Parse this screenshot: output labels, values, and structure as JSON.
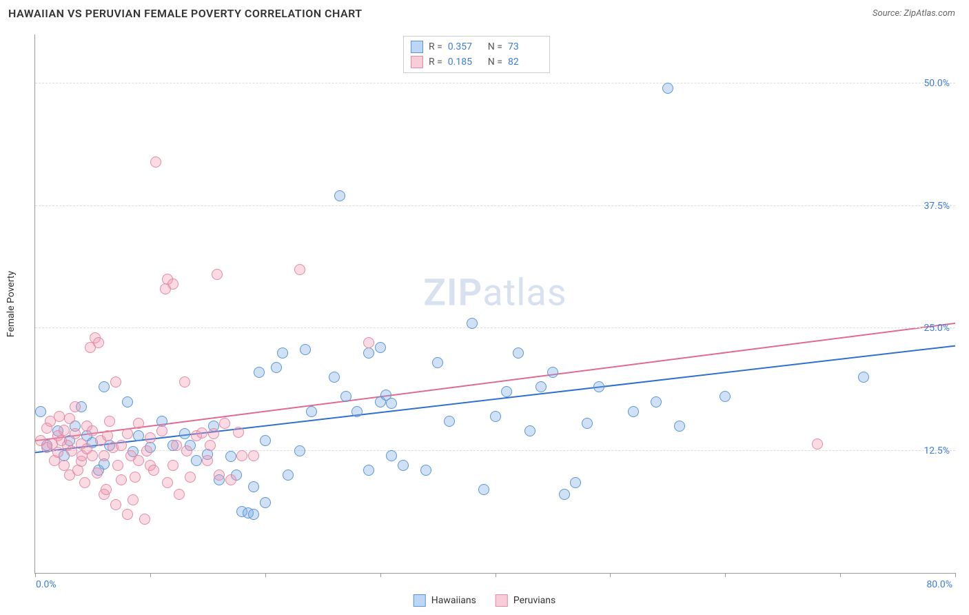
{
  "header": {
    "title": "HAWAIIAN VS PERUVIAN FEMALE POVERTY CORRELATION CHART",
    "source": "Source: ZipAtlas.com"
  },
  "chart": {
    "type": "scatter",
    "y_label": "Female Poverty",
    "xlim": [
      0,
      80
    ],
    "ylim": [
      0,
      55
    ],
    "x_ticks": [
      0,
      10,
      20,
      30,
      40,
      50,
      60,
      70,
      80
    ],
    "x_tick_labels": {
      "min": "0.0%",
      "max": "80.0%"
    },
    "y_gridlines": [
      12.5,
      25.0,
      37.5,
      50.0
    ],
    "y_tick_labels": [
      "12.5%",
      "25.0%",
      "37.5%",
      "50.0%"
    ],
    "background_color": "#ffffff",
    "grid_color": "#dddddd",
    "axis_color": "#999999",
    "tick_label_color": "#3b7dd8",
    "marker_radius": 8,
    "marker_border_width": 1.2,
    "watermark": "ZIPatlas",
    "series": [
      {
        "name": "Hawaiians",
        "fill": "rgba(120,170,230,0.35)",
        "stroke": "#5a96d6",
        "swatch_fill": "#bcd6f5",
        "swatch_border": "#5a96d6",
        "R": "0.357",
        "N": "73",
        "trend": {
          "x1": 0,
          "y1": 12.3,
          "x2": 80,
          "y2": 23.2,
          "color": "#2f6fd0",
          "width": 2
        },
        "points": [
          [
            0.5,
            16.5
          ],
          [
            1,
            13
          ],
          [
            2,
            14.5
          ],
          [
            2.5,
            12
          ],
          [
            3,
            13.5
          ],
          [
            3.5,
            15
          ],
          [
            4,
            17
          ],
          [
            4.5,
            14
          ],
          [
            5,
            13.3
          ],
          [
            5.5,
            10.5
          ],
          [
            6,
            11.1
          ],
          [
            6,
            19
          ],
          [
            6.5,
            13
          ],
          [
            8,
            17.5
          ],
          [
            8.5,
            12.4
          ],
          [
            9,
            14
          ],
          [
            10,
            12.8
          ],
          [
            11,
            15.5
          ],
          [
            12,
            13.0
          ],
          [
            13,
            14.2
          ],
          [
            13.5,
            13.0
          ],
          [
            14,
            11.5
          ],
          [
            15,
            12.1
          ],
          [
            15.5,
            15.0
          ],
          [
            16,
            9.5
          ],
          [
            17,
            11.9
          ],
          [
            17.5,
            10.0
          ],
          [
            18,
            6.3
          ],
          [
            18.5,
            6.1
          ],
          [
            19,
            6.0
          ],
          [
            19,
            8.8
          ],
          [
            19.5,
            20.5
          ],
          [
            20,
            7.2
          ],
          [
            20,
            13.5
          ],
          [
            21,
            21.0
          ],
          [
            21.5,
            22.5
          ],
          [
            22,
            10.0
          ],
          [
            23,
            12.5
          ],
          [
            23.5,
            22.8
          ],
          [
            24,
            16.5
          ],
          [
            26,
            20
          ],
          [
            26.5,
            38.5
          ],
          [
            27,
            18
          ],
          [
            28,
            16.5
          ],
          [
            29,
            22.5
          ],
          [
            29,
            10.5
          ],
          [
            30,
            17.5
          ],
          [
            30,
            23
          ],
          [
            30.5,
            18.2
          ],
          [
            31,
            12.0
          ],
          [
            31,
            17.3
          ],
          [
            32,
            11.0
          ],
          [
            34,
            10.5
          ],
          [
            35,
            21.5
          ],
          [
            36,
            15.5
          ],
          [
            38,
            25.5
          ],
          [
            39,
            8.5
          ],
          [
            40,
            16.0
          ],
          [
            41,
            18.5
          ],
          [
            42,
            22.5
          ],
          [
            43,
            14.5
          ],
          [
            44,
            19.0
          ],
          [
            45,
            20.5
          ],
          [
            46,
            8.0
          ],
          [
            47,
            9.2
          ],
          [
            48,
            15.3
          ],
          [
            49,
            19.0
          ],
          [
            52,
            16.5
          ],
          [
            54,
            17.5
          ],
          [
            55,
            49.5
          ],
          [
            56,
            15.0
          ],
          [
            60,
            18.0
          ],
          [
            72,
            20.0
          ]
        ]
      },
      {
        "name": "Peruvians",
        "fill": "rgba(240,150,175,0.35)",
        "stroke": "#e48aa5",
        "swatch_fill": "#f6cdd9",
        "swatch_border": "#e48aa5",
        "R": "0.185",
        "N": "82",
        "trend": {
          "x1": 0,
          "y1": 13.5,
          "x2": 80,
          "y2": 25.5,
          "color": "#e06a8f",
          "width": 2
        },
        "points": [
          [
            0.5,
            13.5
          ],
          [
            1,
            12.8
          ],
          [
            1,
            14.8
          ],
          [
            1.3,
            15.5
          ],
          [
            1.5,
            13.2
          ],
          [
            1.7,
            11.5
          ],
          [
            2,
            14.0
          ],
          [
            2,
            12.3
          ],
          [
            2.1,
            16.0
          ],
          [
            2.3,
            13.5
          ],
          [
            2.5,
            11.0
          ],
          [
            2.5,
            14.6
          ],
          [
            2.8,
            13.0
          ],
          [
            3,
            10.0
          ],
          [
            3,
            15.8
          ],
          [
            3.2,
            12.5
          ],
          [
            3.5,
            14.2
          ],
          [
            3.5,
            17.0
          ],
          [
            3.7,
            10.5
          ],
          [
            4,
            13.2
          ],
          [
            4,
            11.4
          ],
          [
            4.1,
            12.0
          ],
          [
            4.3,
            9.2
          ],
          [
            4.5,
            12.7
          ],
          [
            4.5,
            15.0
          ],
          [
            4.8,
            23.0
          ],
          [
            5,
            12.0
          ],
          [
            5,
            14.5
          ],
          [
            5.2,
            24.0
          ],
          [
            5.4,
            10.2
          ],
          [
            5.5,
            23.5
          ],
          [
            5.7,
            13.5
          ],
          [
            6,
            12.0
          ],
          [
            6,
            8.0
          ],
          [
            6.2,
            8.5
          ],
          [
            6.3,
            14.0
          ],
          [
            6.5,
            15.5
          ],
          [
            6.8,
            12.8
          ],
          [
            7,
            7.0
          ],
          [
            7,
            19.5
          ],
          [
            7.2,
            11.0
          ],
          [
            7.5,
            13.0
          ],
          [
            7.5,
            9.5
          ],
          [
            8,
            14.2
          ],
          [
            8,
            6.0
          ],
          [
            8.3,
            12.0
          ],
          [
            8.5,
            7.5
          ],
          [
            8.7,
            9.8
          ],
          [
            9,
            11.5
          ],
          [
            9,
            15.3
          ],
          [
            9.5,
            5.5
          ],
          [
            9.7,
            12.5
          ],
          [
            10,
            11.0
          ],
          [
            10,
            13.8
          ],
          [
            10.3,
            10.5
          ],
          [
            10.5,
            42.0
          ],
          [
            11,
            14.5
          ],
          [
            11.3,
            29.0
          ],
          [
            11.5,
            30.0
          ],
          [
            11.5,
            9.2
          ],
          [
            12,
            29.5
          ],
          [
            12,
            11.0
          ],
          [
            12.3,
            13.0
          ],
          [
            12.5,
            8.0
          ],
          [
            13,
            19.5
          ],
          [
            13.2,
            12.5
          ],
          [
            13.5,
            9.8
          ],
          [
            14,
            14.0
          ],
          [
            14.5,
            14.3
          ],
          [
            15,
            11.5
          ],
          [
            15.2,
            13.0
          ],
          [
            15.5,
            14.2
          ],
          [
            15.8,
            30.5
          ],
          [
            16,
            10.0
          ],
          [
            16.5,
            15.3
          ],
          [
            17,
            9.5
          ],
          [
            17.7,
            14.4
          ],
          [
            18,
            12.0
          ],
          [
            19,
            12.0
          ],
          [
            23,
            31.0
          ],
          [
            29,
            23.5
          ],
          [
            68,
            13.2
          ]
        ]
      }
    ],
    "bottom_legend": [
      "Hawaiians",
      "Peruvians"
    ]
  }
}
